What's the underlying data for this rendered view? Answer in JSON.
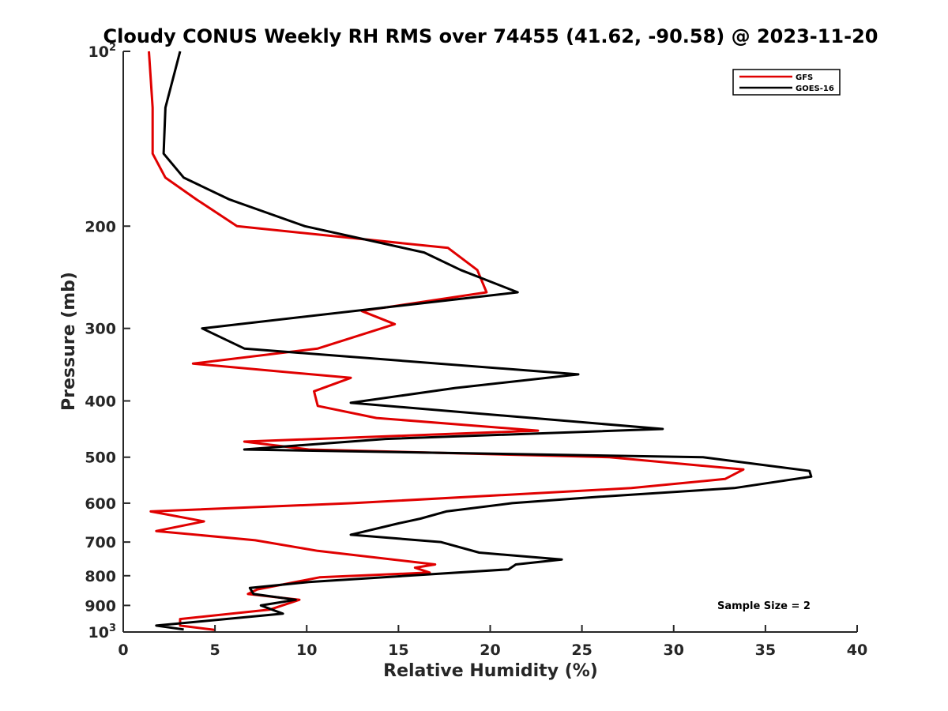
{
  "chart_data": {
    "type": "line",
    "title": "Cloudy CONUS Weekly RH RMS over 74455 (41.62, -90.58) @ 2023-11-20",
    "xlabel": "Relative Humidity (%)",
    "ylabel": "Pressure (mb)",
    "xlim": [
      0,
      40
    ],
    "ylim": [
      100,
      1000
    ],
    "y_scale": "log",
    "y_reversed": true,
    "grid": false,
    "legend_position": "top-right",
    "x_ticks": [
      0,
      5,
      10,
      15,
      20,
      25,
      30,
      35,
      40
    ],
    "y_ticks": [
      {
        "value": 100,
        "label": "10",
        "exp": "2"
      },
      {
        "value": 200,
        "label": "200"
      },
      {
        "value": 300,
        "label": "300"
      },
      {
        "value": 400,
        "label": "400"
      },
      {
        "value": 500,
        "label": "500"
      },
      {
        "value": 600,
        "label": "600"
      },
      {
        "value": 700,
        "label": "700"
      },
      {
        "value": 800,
        "label": "800"
      },
      {
        "value": 900,
        "label": "900"
      },
      {
        "value": 1000,
        "label": "10",
        "exp": "3"
      }
    ],
    "annotation": "Sample Size = 2",
    "series": [
      {
        "name": "GFS",
        "color": "#e00000",
        "points": [
          [
            1.4,
            100
          ],
          [
            1.6,
            125
          ],
          [
            1.6,
            150
          ],
          [
            2.3,
            165
          ],
          [
            4.0,
            180
          ],
          [
            6.2,
            200
          ],
          [
            17.7,
            218
          ],
          [
            19.3,
            238
          ],
          [
            19.8,
            260
          ],
          [
            13.0,
            280
          ],
          [
            14.8,
            295
          ],
          [
            10.6,
            325
          ],
          [
            3.8,
            345
          ],
          [
            12.4,
            365
          ],
          [
            10.4,
            385
          ],
          [
            10.6,
            408
          ],
          [
            13.8,
            428
          ],
          [
            22.6,
            450
          ],
          [
            6.6,
            470
          ],
          [
            10.1,
            485
          ],
          [
            26.5,
            500
          ],
          [
            33.8,
            525
          ],
          [
            32.8,
            545
          ],
          [
            27.7,
            565
          ],
          [
            12.5,
            600
          ],
          [
            1.5,
            620
          ],
          [
            4.4,
            645
          ],
          [
            1.8,
            670
          ],
          [
            7.2,
            695
          ],
          [
            10.6,
            725
          ],
          [
            17.0,
            765
          ],
          [
            15.9,
            775
          ],
          [
            16.7,
            790
          ],
          [
            10.7,
            805
          ],
          [
            7.3,
            845
          ],
          [
            6.8,
            860
          ],
          [
            9.6,
            880
          ],
          [
            8.0,
            915
          ],
          [
            3.1,
            950
          ],
          [
            3.1,
            975
          ],
          [
            5.0,
            992
          ]
        ]
      },
      {
        "name": "GOES-16",
        "color": "#000000",
        "points": [
          [
            3.1,
            100
          ],
          [
            2.3,
            125
          ],
          [
            2.2,
            150
          ],
          [
            3.3,
            165
          ],
          [
            5.8,
            180
          ],
          [
            9.9,
            200
          ],
          [
            16.4,
            222
          ],
          [
            18.4,
            238
          ],
          [
            21.5,
            260
          ],
          [
            4.3,
            300
          ],
          [
            6.6,
            325
          ],
          [
            24.8,
            360
          ],
          [
            18.1,
            380
          ],
          [
            12.4,
            403
          ],
          [
            29.4,
            447
          ],
          [
            14.3,
            465
          ],
          [
            6.6,
            485
          ],
          [
            31.6,
            500
          ],
          [
            37.4,
            528
          ],
          [
            37.5,
            540
          ],
          [
            33.3,
            565
          ],
          [
            25.9,
            585
          ],
          [
            21.2,
            600
          ],
          [
            17.6,
            620
          ],
          [
            16.2,
            638
          ],
          [
            15.0,
            650
          ],
          [
            12.4,
            680
          ],
          [
            17.3,
            700
          ],
          [
            19.4,
            730
          ],
          [
            23.9,
            750
          ],
          [
            21.4,
            765
          ],
          [
            21.0,
            780
          ],
          [
            10.1,
            820
          ],
          [
            6.9,
            840
          ],
          [
            7.1,
            860
          ],
          [
            9.4,
            880
          ],
          [
            7.5,
            900
          ],
          [
            8.7,
            930
          ],
          [
            1.8,
            975
          ],
          [
            3.3,
            990
          ]
        ]
      }
    ]
  }
}
